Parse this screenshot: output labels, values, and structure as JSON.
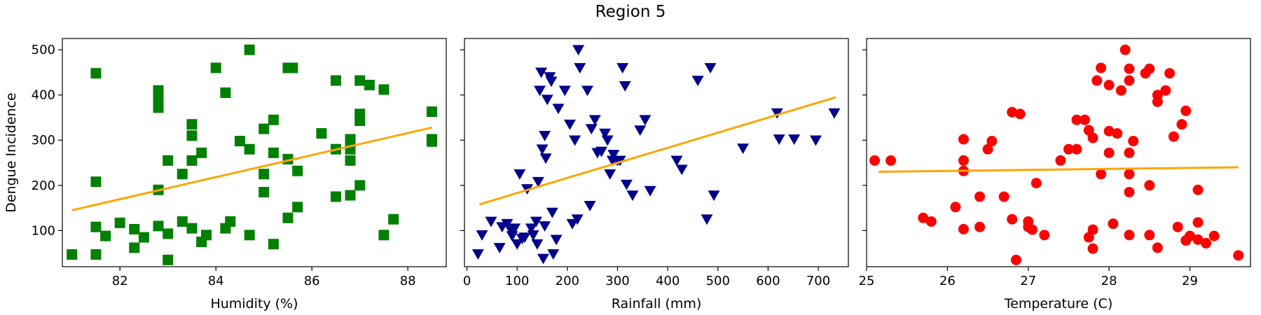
{
  "figure": {
    "title": "Region 5"
  },
  "ylabel": "Dengue Incidence",
  "chart_data": [
    {
      "type": "scatter",
      "xlabel": "Humidity (%)",
      "ylabel": "Dengue Incidence",
      "xlim": [
        80.8,
        88.8
      ],
      "ylim": [
        20,
        525
      ],
      "xticks": [
        82,
        84,
        86,
        88
      ],
      "yticks": [
        100,
        200,
        300,
        400,
        500
      ],
      "marker": "square",
      "color": "#008000",
      "trend_color": "#FFA500",
      "trend": {
        "x": [
          81.0,
          88.5
        ],
        "y": [
          145,
          328
        ]
      },
      "points": [
        [
          81.0,
          47
        ],
        [
          81.5,
          448
        ],
        [
          81.5,
          208
        ],
        [
          81.5,
          108
        ],
        [
          81.5,
          47
        ],
        [
          81.7,
          88
        ],
        [
          82.0,
          117
        ],
        [
          82.3,
          103
        ],
        [
          82.3,
          62
        ],
        [
          82.5,
          85
        ],
        [
          82.8,
          410
        ],
        [
          82.8,
          398
        ],
        [
          82.8,
          385
        ],
        [
          82.8,
          372
        ],
        [
          82.8,
          190
        ],
        [
          82.8,
          110
        ],
        [
          83.0,
          255
        ],
        [
          83.0,
          93
        ],
        [
          83.0,
          35
        ],
        [
          83.3,
          225
        ],
        [
          83.3,
          120
        ],
        [
          83.5,
          335
        ],
        [
          83.5,
          310
        ],
        [
          83.5,
          255
        ],
        [
          83.5,
          105
        ],
        [
          83.7,
          272
        ],
        [
          83.7,
          75
        ],
        [
          83.8,
          90
        ],
        [
          84.0,
          460
        ],
        [
          84.2,
          405
        ],
        [
          84.2,
          105
        ],
        [
          84.3,
          120
        ],
        [
          84.5,
          298
        ],
        [
          84.7,
          500
        ],
        [
          84.7,
          280
        ],
        [
          84.7,
          90
        ],
        [
          85.0,
          325
        ],
        [
          85.0,
          225
        ],
        [
          85.0,
          185
        ],
        [
          85.2,
          345
        ],
        [
          85.2,
          272
        ],
        [
          85.2,
          70
        ],
        [
          85.5,
          460
        ],
        [
          85.5,
          258
        ],
        [
          85.5,
          128
        ],
        [
          85.6,
          460
        ],
        [
          85.7,
          232
        ],
        [
          85.7,
          152
        ],
        [
          86.2,
          315
        ],
        [
          86.5,
          432
        ],
        [
          86.5,
          280
        ],
        [
          86.5,
          175
        ],
        [
          86.8,
          302
        ],
        [
          86.8,
          280
        ],
        [
          86.8,
          255
        ],
        [
          86.8,
          178
        ],
        [
          87.0,
          432
        ],
        [
          87.0,
          358
        ],
        [
          87.0,
          343
        ],
        [
          87.0,
          200
        ],
        [
          87.2,
          422
        ],
        [
          87.5,
          412
        ],
        [
          87.5,
          90
        ],
        [
          87.7,
          125
        ],
        [
          88.5,
          363
        ],
        [
          88.5,
          302
        ],
        [
          88.5,
          297
        ]
      ]
    },
    {
      "type": "scatter",
      "xlabel": "Rainfall (mm)",
      "ylabel": "",
      "xlim": [
        -5,
        760
      ],
      "ylim": [
        20,
        525
      ],
      "xticks": [
        0,
        100,
        200,
        300,
        400,
        500,
        600,
        700
      ],
      "yticks": [
        100,
        200,
        300,
        400,
        500
      ],
      "marker": "triangle-down",
      "color": "#00008B",
      "trend_color": "#FFA500",
      "trend": {
        "x": [
          25,
          735
        ],
        "y": [
          158,
          395
        ]
      },
      "points": [
        [
          22,
          48
        ],
        [
          30,
          90
        ],
        [
          48,
          120
        ],
        [
          65,
          62
        ],
        [
          70,
          108
        ],
        [
          80,
          115
        ],
        [
          88,
          100
        ],
        [
          90,
          88
        ],
        [
          95,
          105
        ],
        [
          100,
          70
        ],
        [
          105,
          225
        ],
        [
          110,
          82
        ],
        [
          115,
          85
        ],
        [
          120,
          192
        ],
        [
          128,
          105
        ],
        [
          132,
          90
        ],
        [
          138,
          120
        ],
        [
          140,
          70
        ],
        [
          142,
          208
        ],
        [
          145,
          410
        ],
        [
          148,
          450
        ],
        [
          150,
          280
        ],
        [
          152,
          38
        ],
        [
          155,
          310
        ],
        [
          155,
          110
        ],
        [
          157,
          260
        ],
        [
          160,
          390
        ],
        [
          165,
          440
        ],
        [
          168,
          430
        ],
        [
          170,
          140
        ],
        [
          172,
          48
        ],
        [
          178,
          80
        ],
        [
          182,
          370
        ],
        [
          195,
          410
        ],
        [
          205,
          335
        ],
        [
          210,
          115
        ],
        [
          215,
          300
        ],
        [
          220,
          125
        ],
        [
          222,
          500
        ],
        [
          225,
          460
        ],
        [
          240,
          410
        ],
        [
          245,
          155
        ],
        [
          248,
          325
        ],
        [
          255,
          345
        ],
        [
          260,
          272
        ],
        [
          268,
          275
        ],
        [
          275,
          315
        ],
        [
          280,
          300
        ],
        [
          285,
          225
        ],
        [
          290,
          255
        ],
        [
          292,
          268
        ],
        [
          300,
          255
        ],
        [
          305,
          255
        ],
        [
          310,
          460
        ],
        [
          315,
          420
        ],
        [
          318,
          202
        ],
        [
          330,
          178
        ],
        [
          345,
          322
        ],
        [
          355,
          345
        ],
        [
          365,
          188
        ],
        [
          418,
          255
        ],
        [
          428,
          235
        ],
        [
          460,
          432
        ],
        [
          478,
          125
        ],
        [
          485,
          460
        ],
        [
          492,
          178
        ],
        [
          550,
          282
        ],
        [
          618,
          360
        ],
        [
          622,
          302
        ],
        [
          652,
          302
        ],
        [
          695,
          300
        ],
        [
          732,
          360
        ]
      ]
    },
    {
      "type": "scatter",
      "xlabel": "Temperature (C)",
      "ylabel": "",
      "xlim": [
        25.0,
        29.75
      ],
      "ylim": [
        20,
        525
      ],
      "xticks": [
        25,
        26,
        27,
        28,
        29
      ],
      "yticks": [
        100,
        200,
        300,
        400,
        500
      ],
      "marker": "circle",
      "color": "#FF0000",
      "trend_color": "#FFA500",
      "trend": {
        "x": [
          25.15,
          29.6
        ],
        "y": [
          230,
          240
        ]
      },
      "points": [
        [
          25.1,
          255
        ],
        [
          25.3,
          255
        ],
        [
          25.7,
          128
        ],
        [
          25.8,
          120
        ],
        [
          26.1,
          152
        ],
        [
          26.2,
          302
        ],
        [
          26.2,
          255
        ],
        [
          26.2,
          232
        ],
        [
          26.2,
          103
        ],
        [
          26.4,
          175
        ],
        [
          26.4,
          108
        ],
        [
          26.5,
          280
        ],
        [
          26.55,
          298
        ],
        [
          26.7,
          175
        ],
        [
          26.8,
          362
        ],
        [
          26.8,
          125
        ],
        [
          26.85,
          35
        ],
        [
          26.9,
          358
        ],
        [
          27.0,
          120
        ],
        [
          27.0,
          108
        ],
        [
          27.05,
          102
        ],
        [
          27.1,
          205
        ],
        [
          27.2,
          90
        ],
        [
          27.4,
          255
        ],
        [
          27.5,
          280
        ],
        [
          27.6,
          280
        ],
        [
          27.6,
          345
        ],
        [
          27.7,
          345
        ],
        [
          27.75,
          322
        ],
        [
          27.75,
          85
        ],
        [
          27.8,
          305
        ],
        [
          27.8,
          102
        ],
        [
          27.8,
          60
        ],
        [
          27.85,
          432
        ],
        [
          27.9,
          460
        ],
        [
          27.9,
          225
        ],
        [
          28.0,
          422
        ],
        [
          28.0,
          320
        ],
        [
          28.0,
          272
        ],
        [
          28.05,
          115
        ],
        [
          28.1,
          315
        ],
        [
          28.15,
          410
        ],
        [
          28.2,
          500
        ],
        [
          28.25,
          458
        ],
        [
          28.25,
          432
        ],
        [
          28.25,
          272
        ],
        [
          28.25,
          225
        ],
        [
          28.25,
          185
        ],
        [
          28.25,
          90
        ],
        [
          28.3,
          298
        ],
        [
          28.45,
          448
        ],
        [
          28.5,
          458
        ],
        [
          28.5,
          200
        ],
        [
          28.5,
          90
        ],
        [
          28.6,
          400
        ],
        [
          28.6,
          385
        ],
        [
          28.6,
          62
        ],
        [
          28.7,
          410
        ],
        [
          28.75,
          448
        ],
        [
          28.8,
          308
        ],
        [
          28.85,
          108
        ],
        [
          28.9,
          335
        ],
        [
          28.95,
          365
        ],
        [
          28.95,
          78
        ],
        [
          29.0,
          88
        ],
        [
          29.1,
          118
        ],
        [
          29.1,
          190
        ],
        [
          29.1,
          80
        ],
        [
          29.2,
          72
        ],
        [
          29.3,
          88
        ],
        [
          29.6,
          45
        ]
      ]
    }
  ]
}
